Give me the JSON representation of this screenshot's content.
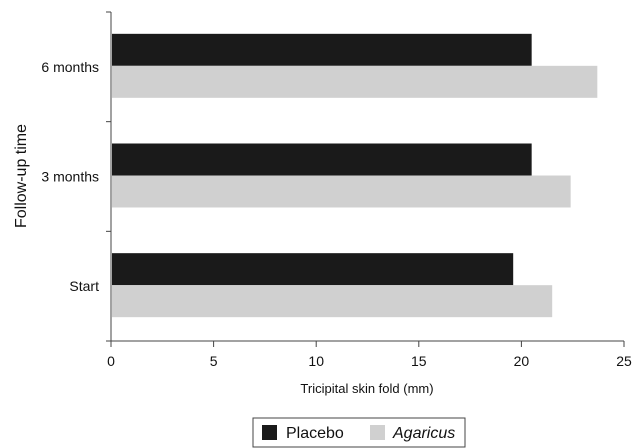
{
  "chart_data": {
    "type": "bar",
    "orientation": "horizontal",
    "title": "",
    "xlabel": "Tricipital skin fold (mm)",
    "ylabel": "Follow-up time",
    "xlim": [
      0,
      25
    ],
    "xticks": [
      "0",
      "5",
      "10",
      "15",
      "20",
      "25"
    ],
    "categories": [
      "Start",
      "3 months",
      "6 months"
    ],
    "series": [
      {
        "name": "Placebo",
        "values": [
          19.6,
          20.5,
          20.5
        ],
        "color": "#1a1a1a"
      },
      {
        "name": "Agaricus",
        "values": [
          21.5,
          22.4,
          23.7
        ],
        "color": "#d0d0d0",
        "italic": true
      }
    ],
    "grid": false,
    "legend_position": "bottom-center"
  }
}
